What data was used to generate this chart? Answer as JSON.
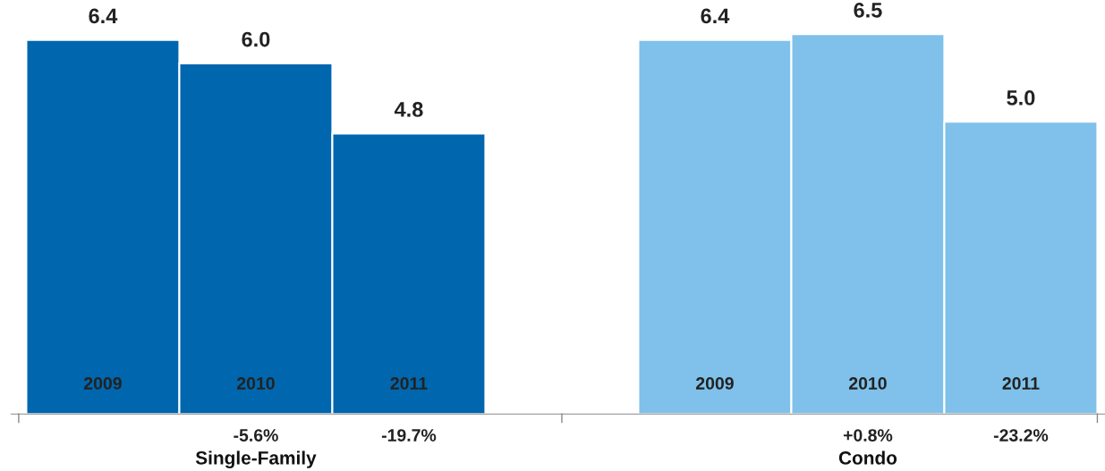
{
  "chart_data": {
    "type": "bar",
    "categories": [
      "2009",
      "2010",
      "2011",
      null,
      "2009",
      "2010",
      "2011"
    ],
    "values": [
      6.4,
      6.0,
      4.8,
      null,
      6.4,
      6.5,
      5.0
    ],
    "colors": [
      "#0066ae",
      "#0066ae",
      "#0066ae",
      "#ffffff",
      "#7fc1ea",
      "#7fc1ea",
      "#7fc1ea"
    ],
    "value_labels": [
      "6.4",
      "6.0",
      "4.8",
      null,
      "6.4",
      "6.5",
      "5.0"
    ],
    "annotations": [
      "-5.6%",
      "-19.7%",
      "+0.8%",
      "-23.2%",
      "Single-Family",
      "Condo"
    ]
  }
}
